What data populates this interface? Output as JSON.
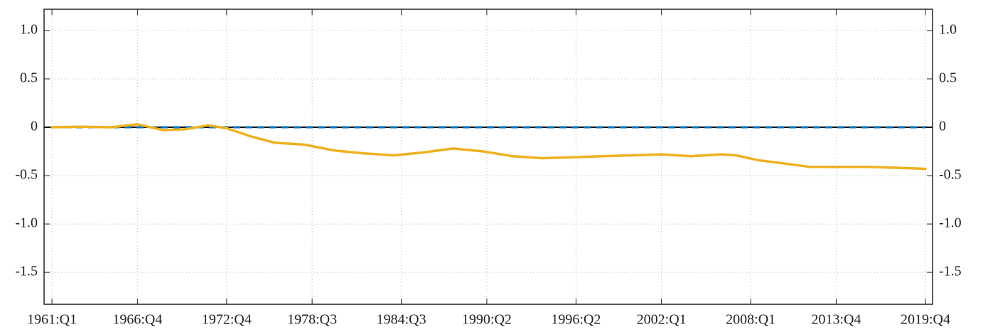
{
  "chart_data": {
    "type": "line",
    "xlim": [
      1960.47,
      2020.23
    ],
    "xticks": [
      {
        "value": 1961.0,
        "label": "1961:Q1"
      },
      {
        "value": 1966.75,
        "label": "1966:Q4"
      },
      {
        "value": 1972.75,
        "label": "1972:Q4"
      },
      {
        "value": 1978.5,
        "label": "1978:Q3"
      },
      {
        "value": 1984.5,
        "label": "1984:Q3"
      },
      {
        "value": 1990.25,
        "label": "1990:Q2"
      },
      {
        "value": 1996.25,
        "label": "1996:Q2"
      },
      {
        "value": 2002.0,
        "label": "2002:Q1"
      },
      {
        "value": 2008.0,
        "label": "2008:Q1"
      },
      {
        "value": 2013.75,
        "label": "2013:Q4"
      },
      {
        "value": 2019.75,
        "label": "2019:Q4"
      }
    ],
    "ylim": [
      -1.83,
      1.22
    ],
    "yticks": [
      {
        "value": 1,
        "label": "1.0"
      },
      0.5,
      0,
      -0.5,
      {
        "value": -1,
        "label": "-1.0"
      },
      -1.5
    ],
    "grid": true,
    "zero_line": true,
    "series": [
      {
        "color": "#edb120",
        "style": "solid",
        "x": [
          1961,
          1963,
          1965,
          1966.75,
          1968.5,
          1970,
          1971.5,
          1972.75,
          1974.5,
          1976,
          1978,
          1980,
          1982,
          1984,
          1986,
          1988,
          1990,
          1992,
          1994,
          1996,
          1998,
          2000,
          2002,
          2004,
          2006,
          2007,
          2008.5,
          2010,
          2012,
          2014,
          2016,
          2018,
          2019.75
        ],
        "values": [
          0.0,
          0.005,
          0.0,
          0.03,
          -0.03,
          -0.02,
          0.02,
          -0.01,
          -0.1,
          -0.16,
          -0.18,
          -0.24,
          -0.27,
          -0.29,
          -0.26,
          -0.22,
          -0.25,
          -0.3,
          -0.32,
          -0.31,
          -0.3,
          -0.29,
          -0.28,
          -0.3,
          -0.28,
          -0.29,
          -0.34,
          -0.37,
          -0.41,
          -0.41,
          -0.41,
          -0.42,
          -0.43
        ]
      },
      {
        "color": "#0072bd",
        "style": "dashed",
        "x": [
          1961,
          2019.75
        ],
        "values": [
          0,
          0
        ]
      },
      {
        "color": "#d95319",
        "style": "dashed",
        "x": [
          1961,
          2019.75
        ],
        "values": [
          0,
          0
        ]
      }
    ]
  }
}
